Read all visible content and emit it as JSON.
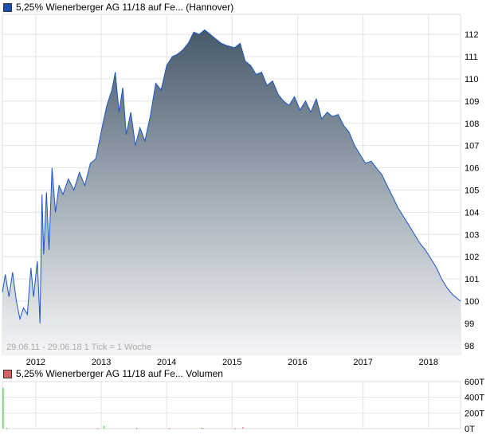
{
  "colors": {
    "price_line": "#1a55c8",
    "area_top": "#47596a",
    "area_bottom": "#f4f5f7",
    "grid": "#dddddd",
    "volume_up": "#22cc22",
    "volume_down": "#cc3333",
    "legend_price": "#1a4fb5",
    "legend_volume": "#d46060"
  },
  "chart_data": [
    {
      "type": "area",
      "title": "5,25% Wienerberger AG 11/18 auf Fe... (Hannover)",
      "legend": "5,25% Wienerberger AG 11/18 auf Fe... (Hannover)",
      "note": "29.06.11 - 29.06.18   1 Tick = 1 Woche",
      "x_ticks": [
        "2012",
        "2013",
        "2014",
        "2015",
        "2016",
        "2017",
        "2018"
      ],
      "y_ticks": [
        98,
        99,
        100,
        101,
        102,
        103,
        104,
        105,
        106,
        107,
        108,
        109,
        110,
        111,
        112
      ],
      "ylim": [
        97.6,
        112.9
      ],
      "xlim": [
        "2011-06-29",
        "2018-06-29"
      ],
      "grid": true,
      "points": [
        [
          "2011-06-29",
          100.4
        ],
        [
          "2011-07-15",
          101.2
        ],
        [
          "2011-08-05",
          100.2
        ],
        [
          "2011-08-25",
          101.3
        ],
        [
          "2011-09-15",
          100.0
        ],
        [
          "2011-10-05",
          99.2
        ],
        [
          "2011-10-25",
          99.7
        ],
        [
          "2011-11-15",
          99.4
        ],
        [
          "2011-12-05",
          101.5
        ],
        [
          "2011-12-20",
          100.2
        ],
        [
          "2012-01-10",
          101.8
        ],
        [
          "2012-01-25",
          99.0
        ],
        [
          "2012-02-05",
          104.8
        ],
        [
          "2012-02-15",
          102.1
        ],
        [
          "2012-03-01",
          104.9
        ],
        [
          "2012-03-15",
          102.3
        ],
        [
          "2012-04-01",
          106.0
        ],
        [
          "2012-04-20",
          104.0
        ],
        [
          "2012-05-10",
          105.2
        ],
        [
          "2012-06-01",
          104.8
        ],
        [
          "2012-07-01",
          105.5
        ],
        [
          "2012-08-01",
          105.0
        ],
        [
          "2012-09-01",
          105.8
        ],
        [
          "2012-10-01",
          105.2
        ],
        [
          "2012-11-01",
          106.2
        ],
        [
          "2012-12-01",
          106.4
        ],
        [
          "2013-01-10",
          108.0
        ],
        [
          "2013-02-01",
          108.8
        ],
        [
          "2013-03-01",
          109.5
        ],
        [
          "2013-03-20",
          110.3
        ],
        [
          "2013-04-10",
          108.5
        ],
        [
          "2013-05-01",
          109.6
        ],
        [
          "2013-05-20",
          107.5
        ],
        [
          "2013-06-15",
          108.5
        ],
        [
          "2013-07-10",
          107.0
        ],
        [
          "2013-08-05",
          107.8
        ],
        [
          "2013-09-01",
          107.2
        ],
        [
          "2013-10-01",
          108.3
        ],
        [
          "2013-11-01",
          109.8
        ],
        [
          "2013-12-01",
          109.5
        ],
        [
          "2014-01-01",
          110.6
        ],
        [
          "2014-02-01",
          111.0
        ],
        [
          "2014-03-01",
          111.1
        ],
        [
          "2014-04-01",
          111.3
        ],
        [
          "2014-05-01",
          111.6
        ],
        [
          "2014-06-01",
          112.1
        ],
        [
          "2014-07-01",
          112.0
        ],
        [
          "2014-08-01",
          112.2
        ],
        [
          "2014-09-01",
          112.0
        ],
        [
          "2014-10-01",
          111.8
        ],
        [
          "2014-11-01",
          111.6
        ],
        [
          "2014-12-01",
          111.5
        ],
        [
          "2015-01-15",
          111.4
        ],
        [
          "2015-02-15",
          111.6
        ],
        [
          "2015-03-15",
          110.8
        ],
        [
          "2015-04-15",
          110.6
        ],
        [
          "2015-05-15",
          110.2
        ],
        [
          "2015-06-15",
          110.3
        ],
        [
          "2015-07-15",
          109.7
        ],
        [
          "2015-08-15",
          109.9
        ],
        [
          "2015-09-15",
          109.3
        ],
        [
          "2015-10-15",
          109.0
        ],
        [
          "2015-11-15",
          108.8
        ],
        [
          "2015-12-15",
          109.2
        ],
        [
          "2016-01-15",
          108.6
        ],
        [
          "2016-02-15",
          109.0
        ],
        [
          "2016-03-15",
          108.5
        ],
        [
          "2016-04-15",
          109.1
        ],
        [
          "2016-05-15",
          108.2
        ],
        [
          "2016-06-15",
          108.5
        ],
        [
          "2016-07-15",
          108.3
        ],
        [
          "2016-08-15",
          108.4
        ],
        [
          "2016-09-15",
          107.9
        ],
        [
          "2016-10-15",
          107.6
        ],
        [
          "2016-11-15",
          107.0
        ],
        [
          "2016-12-15",
          106.6
        ],
        [
          "2017-01-15",
          106.2
        ],
        [
          "2017-02-15",
          106.3
        ],
        [
          "2017-03-15",
          106.0
        ],
        [
          "2017-04-15",
          105.7
        ],
        [
          "2017-05-15",
          105.2
        ],
        [
          "2017-06-15",
          104.7
        ],
        [
          "2017-07-15",
          104.2
        ],
        [
          "2017-08-15",
          103.8
        ],
        [
          "2017-09-15",
          103.4
        ],
        [
          "2017-10-15",
          103.0
        ],
        [
          "2017-11-15",
          102.6
        ],
        [
          "2017-12-15",
          102.3
        ],
        [
          "2018-01-15",
          101.9
        ],
        [
          "2018-02-15",
          101.5
        ],
        [
          "2018-03-15",
          101.0
        ],
        [
          "2018-04-15",
          100.6
        ],
        [
          "2018-05-15",
          100.3
        ],
        [
          "2018-06-29",
          100.0
        ]
      ]
    },
    {
      "type": "bar",
      "legend": "5,25% Wienerberger AG 11/18 auf Fe... Volumen",
      "y_ticks": [
        "600T",
        "400T",
        "200T",
        "0T"
      ],
      "ylim": [
        0,
        600
      ],
      "unit": "T",
      "bars": [
        [
          "2011-07-01",
          520,
          "up"
        ],
        [
          "2011-07-20",
          8,
          "down"
        ],
        [
          "2012-12-10",
          6,
          "down"
        ],
        [
          "2013-01-15",
          40,
          "up"
        ],
        [
          "2013-07-15",
          8,
          "down"
        ],
        [
          "2014-01-15",
          6,
          "down"
        ],
        [
          "2014-07-10",
          10,
          "up"
        ],
        [
          "2014-07-20",
          8,
          "down"
        ],
        [
          "2015-01-15",
          5,
          "down"
        ],
        [
          "2015-03-01",
          18,
          "down"
        ]
      ]
    }
  ]
}
